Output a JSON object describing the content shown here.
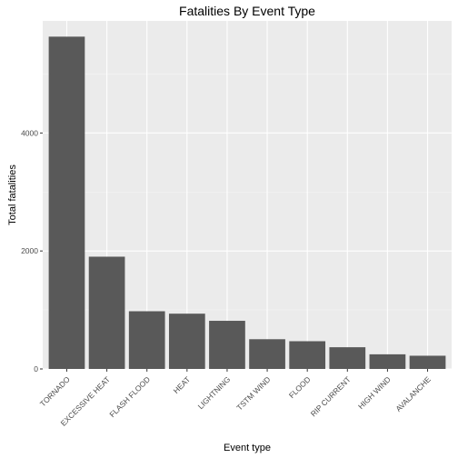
{
  "chart_data": {
    "type": "bar",
    "title": "Fatalities By Event Type",
    "xlabel": "Event type",
    "ylabel": "Total fatalities",
    "categories": [
      "TORNADO",
      "EXCESSIVE HEAT",
      "FLASH FLOOD",
      "HEAT",
      "LIGHTNING",
      "TSTM WIND",
      "FLOOD",
      "RIP CURRENT",
      "HIGH WIND",
      "AVALANCHE"
    ],
    "values": [
      5633,
      1903,
      978,
      937,
      816,
      504,
      470,
      368,
      248,
      224
    ],
    "ylim": [
      0,
      5900
    ],
    "yticks": [
      0,
      2000,
      4000
    ],
    "grid": true,
    "colors": {
      "panel": "#ebebeb",
      "grid_major": "#ffffff",
      "grid_minor": "#f5f5f5",
      "bar": "#595959",
      "tick": "#333333"
    }
  }
}
